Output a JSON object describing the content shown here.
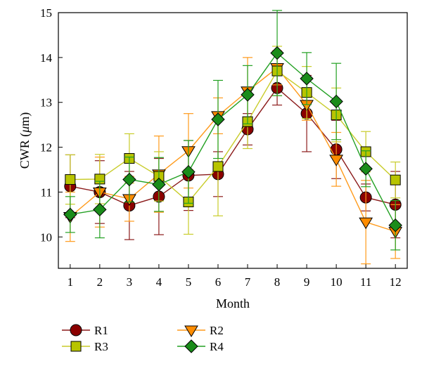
{
  "chart_data": {
    "type": "line",
    "xlabel": "Month",
    "ylabel_prefix": "CWR (",
    "ylabel_unit_italic": "μ",
    "ylabel_suffix": "m)",
    "xlim": [
      0.6,
      12.4
    ],
    "ylim": [
      9.3,
      15.0
    ],
    "x_ticks": [
      1,
      2,
      3,
      4,
      5,
      6,
      7,
      8,
      9,
      10,
      11,
      12
    ],
    "y_ticks": [
      10,
      11,
      12,
      13,
      14,
      15
    ],
    "grid": false,
    "legend_position": "bottom",
    "series": [
      {
        "name": "R1",
        "marker": "circle",
        "color": "#8b0000",
        "line_color": "#8b1a1a",
        "err_color": "#8b1a1a",
        "values": [
          11.13,
          11.0,
          10.7,
          10.9,
          11.37,
          11.4,
          12.4,
          13.32,
          12.75,
          11.95,
          10.88,
          10.72
        ],
        "err": [
          0.7,
          0.7,
          0.76,
          0.85,
          0.78,
          0.5,
          0.35,
          0.38,
          0.85,
          0.65,
          0.3,
          0.74
        ]
      },
      {
        "name": "R2",
        "marker": "triangle-down",
        "color": "#ff8c00",
        "line_color": "#ff9a1a",
        "err_color": "#ff9a1a",
        "values": [
          10.45,
          11.0,
          10.85,
          11.4,
          11.92,
          12.7,
          13.25,
          13.77,
          12.95,
          11.73,
          10.33,
          10.12
        ],
        "err": [
          0.55,
          0.78,
          0.5,
          0.85,
          0.83,
          0.4,
          0.75,
          0.38,
          0.35,
          0.6,
          0.93,
          0.6
        ]
      },
      {
        "name": "R3",
        "marker": "square",
        "color": "#b8c400",
        "line_color": "#c8cc2a",
        "err_color": "#c8cc2a",
        "values": [
          11.28,
          11.29,
          11.75,
          11.35,
          10.78,
          11.57,
          12.57,
          13.7,
          13.22,
          12.72,
          11.9,
          11.27
        ],
        "err": [
          0.55,
          0.55,
          0.55,
          0.55,
          0.72,
          1.1,
          0.6,
          0.55,
          0.58,
          0.6,
          0.45,
          0.4
        ]
      },
      {
        "name": "R4",
        "marker": "diamond",
        "color": "#1a8c1a",
        "line_color": "#22a022",
        "err_color": "#22a022",
        "values": [
          10.5,
          10.61,
          11.28,
          11.17,
          11.45,
          12.62,
          13.17,
          14.1,
          13.53,
          13.02,
          11.52,
          10.26
        ],
        "err": [
          0.4,
          0.63,
          0.5,
          0.6,
          0.7,
          0.87,
          0.65,
          0.95,
          0.58,
          0.85,
          0.4,
          0.55
        ]
      }
    ]
  }
}
